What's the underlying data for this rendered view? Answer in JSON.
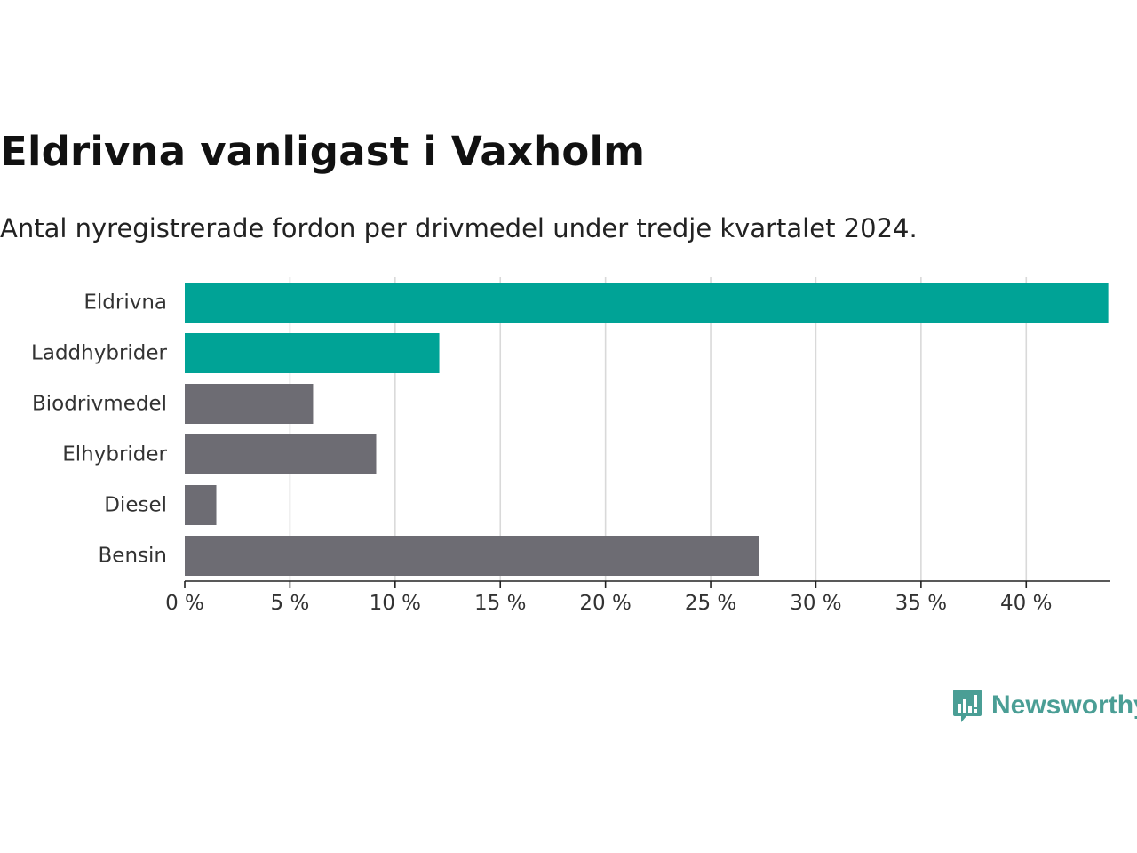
{
  "chart_data": {
    "type": "bar",
    "orientation": "horizontal",
    "title": "Eldrivna vanligast i Vaxholm",
    "subtitle": "Antal nyregistrerade fordon per drivmedel under tredje kvartalet 2024.",
    "xlabel": "",
    "ylabel": "",
    "categories": [
      "Eldrivna",
      "Laddhybrider",
      "Biodrivmedel",
      "Elhybrider",
      "Diesel",
      "Bensin"
    ],
    "values": [
      43.9,
      12.1,
      6.1,
      9.1,
      1.5,
      27.3
    ],
    "colors": [
      "#00a396",
      "#00a396",
      "#6d6c73",
      "#6d6c73",
      "#6d6c73",
      "#6d6c73"
    ],
    "xlim": [
      0,
      44
    ],
    "xticks": [
      0,
      5,
      10,
      15,
      20,
      25,
      30,
      35,
      40
    ],
    "tick_suffix": " %",
    "grid": true
  },
  "branding": {
    "logo_text": "Newsworthy",
    "logo_icon": "newsworthy-logo-icon",
    "logo_color": "#4a9e95"
  }
}
